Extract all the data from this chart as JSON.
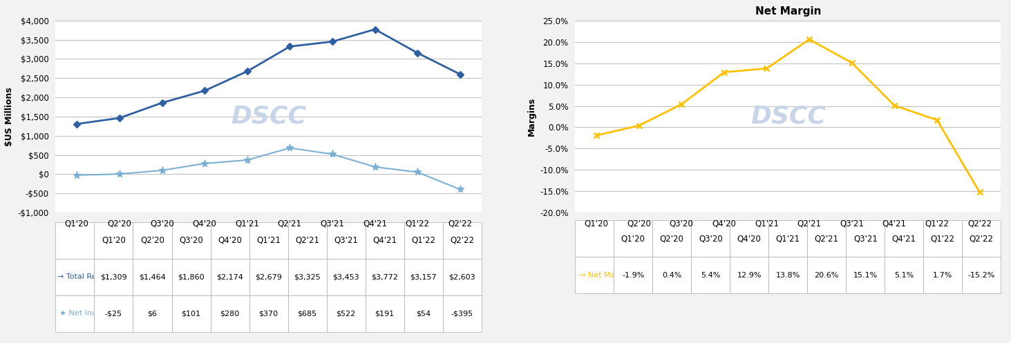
{
  "categories": [
    "Q1'20",
    "Q2'20",
    "Q3'20",
    "Q4'20",
    "Q1'21",
    "Q2'21",
    "Q3'21",
    "Q4'21",
    "Q1'22",
    "Q2'22"
  ],
  "total_revenues": [
    1309,
    1464,
    1860,
    2174,
    2679,
    3325,
    3453,
    3772,
    3157,
    2603
  ],
  "net_income": [
    -25,
    6,
    101,
    280,
    370,
    685,
    522,
    191,
    54,
    -395
  ],
  "net_margin": [
    -1.9,
    0.4,
    5.4,
    12.9,
    13.8,
    20.6,
    15.1,
    5.1,
    1.7,
    -15.2
  ],
  "revenue_labels": [
    "$1,309",
    "$1,464",
    "$1,860",
    "$2,174",
    "$2,679",
    "$3,325",
    "$3,453",
    "$3,772",
    "$3,157",
    "$2,603"
  ],
  "income_labels": [
    "-$25",
    "$6",
    "$101",
    "$280",
    "$370",
    "$685",
    "$522",
    "$191",
    "$54",
    "-$395"
  ],
  "margin_labels": [
    "-1.9%",
    "0.4%",
    "5.4%",
    "12.9%",
    "13.8%",
    "20.6%",
    "15.1%",
    "5.1%",
    "1.7%",
    "-15.2%"
  ],
  "revenue_color": "#2E5FA3",
  "income_color": "#7BAFD4",
  "margin_color": "#FFC000",
  "watermark_color": "#C8D4E8",
  "right_title": "Net Margin",
  "left_ylabel": "$US Millions",
  "right_ylabel": "Margins",
  "left_ylim": [
    -1000,
    4000
  ],
  "right_ylim": [
    -20,
    25
  ],
  "left_yticks": [
    -1000,
    -500,
    0,
    500,
    1000,
    1500,
    2000,
    2500,
    3000,
    3500,
    4000
  ],
  "right_yticks": [
    -20,
    -15,
    -10,
    -5,
    0,
    5,
    10,
    15,
    20,
    25
  ],
  "bg_color": "#F2F2F2",
  "plot_bg_color": "#FFFFFF",
  "grid_color": "#C0C0C0",
  "table_border_color": "#AAAAAA",
  "legend_revenue_label": "Total Revenues",
  "legend_income_label": "Net Income",
  "legend_margin_label": "Net Margin"
}
